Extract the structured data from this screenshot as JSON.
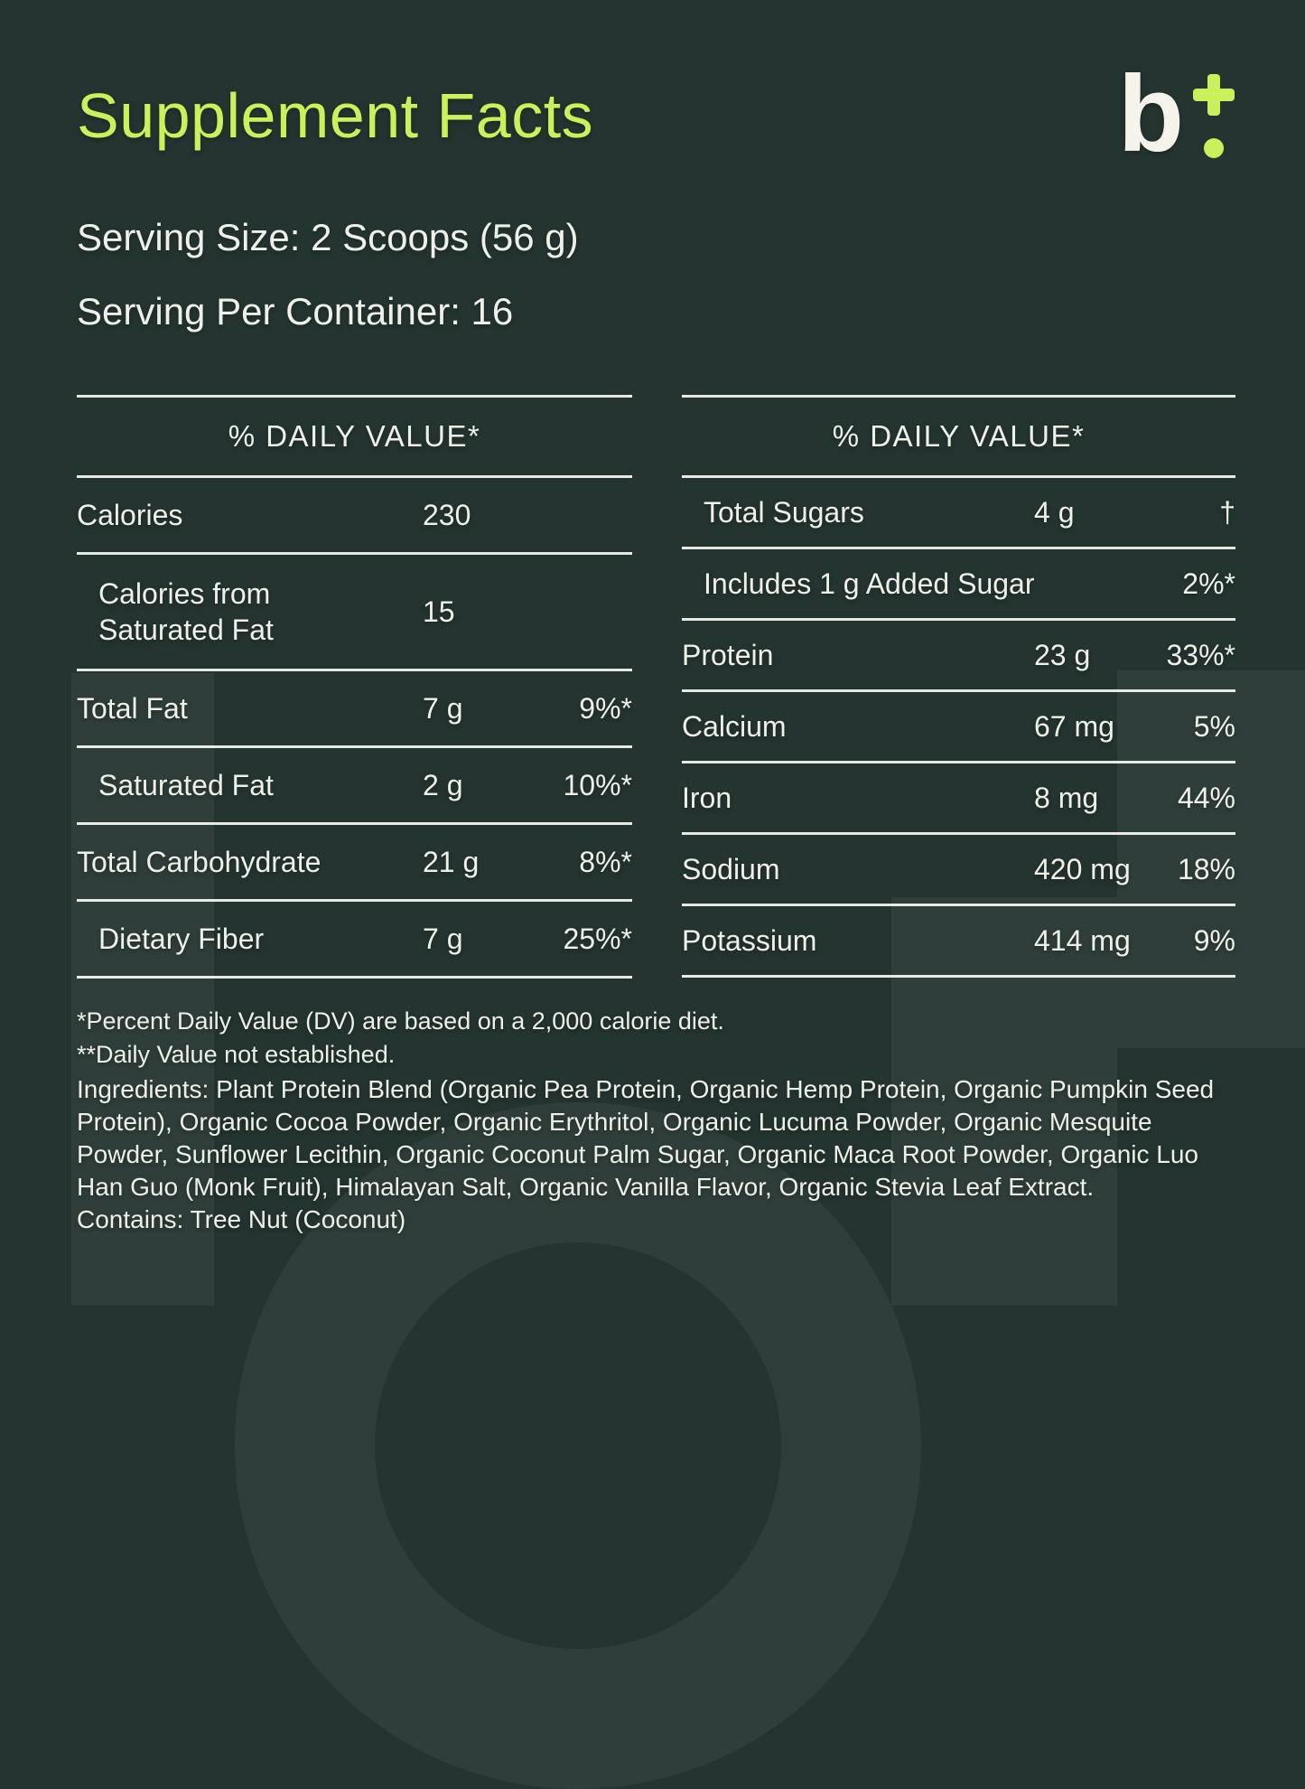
{
  "header": {
    "title": "Supplement Facts",
    "logo": {
      "letter": "b",
      "plus_icon": "plus",
      "dot_icon": "dot"
    }
  },
  "serving": {
    "size": "Serving Size: 2 Scoops (56 g)",
    "per_container": "Serving Per Container: 16"
  },
  "tables": {
    "left": {
      "header": "% DAILY VALUE*",
      "rows": [
        {
          "label": "Calories",
          "amount": "230",
          "pct": ""
        },
        {
          "label": "Calories from Saturated Fat",
          "amount": "15",
          "pct": ""
        },
        {
          "label": "Total Fat",
          "amount": "7 g",
          "pct": "9%*"
        },
        {
          "label": "Saturated Fat",
          "amount": "2 g",
          "pct": "10%*"
        },
        {
          "label": "Total Carbohydrate",
          "amount": "21 g",
          "pct": "8%*"
        },
        {
          "label": "Dietary Fiber",
          "amount": "7 g",
          "pct": "25%*"
        }
      ]
    },
    "right": {
      "header": "% DAILY VALUE*",
      "rows": [
        {
          "label": "Total Sugars",
          "amount": "4 g",
          "pct": "†"
        },
        {
          "label": "Includes 1 g Added Sugar",
          "amount": "",
          "pct": "2%*"
        },
        {
          "label": "Protein",
          "amount": "23 g",
          "pct": "33%*"
        },
        {
          "label": "Calcium",
          "amount": "67 mg",
          "pct": "5%"
        },
        {
          "label": "Iron",
          "amount": "8 mg",
          "pct": "44%"
        },
        {
          "label": "Sodium",
          "amount": "420 mg",
          "pct": "18%"
        },
        {
          "label": "Potassium",
          "amount": "414 mg",
          "pct": "9%"
        }
      ]
    }
  },
  "footnotes": {
    "line1": "*Percent Daily Value (DV) are based on a 2,000 calorie diet.",
    "line2": "**Daily Value not established."
  },
  "ingredients": "Ingredients: Plant Protein Blend (Organic Pea Protein, Organic Hemp Protein, Organic Pumpkin Seed Protein), Organic Cocoa Powder, Organic Erythritol, Organic Lucuma Powder, Organic Mesquite Powder, Sunflower Lecithin, Organic Coconut Palm Sugar, Organic Maca Root Powder, Organic Luo Han Guo (Monk Fruit), Himalayan Salt, Organic Vanilla Flavor, Organic Stevia Leaf Extract.",
  "contains": "Contains: Tree Nut (Coconut)",
  "colors": {
    "background": "#243430",
    "accent": "#c9f25a",
    "text": "#eef0e9",
    "rule": "rgba(242,244,238,.95)",
    "watermark": "rgba(255,255,255,.05)"
  }
}
